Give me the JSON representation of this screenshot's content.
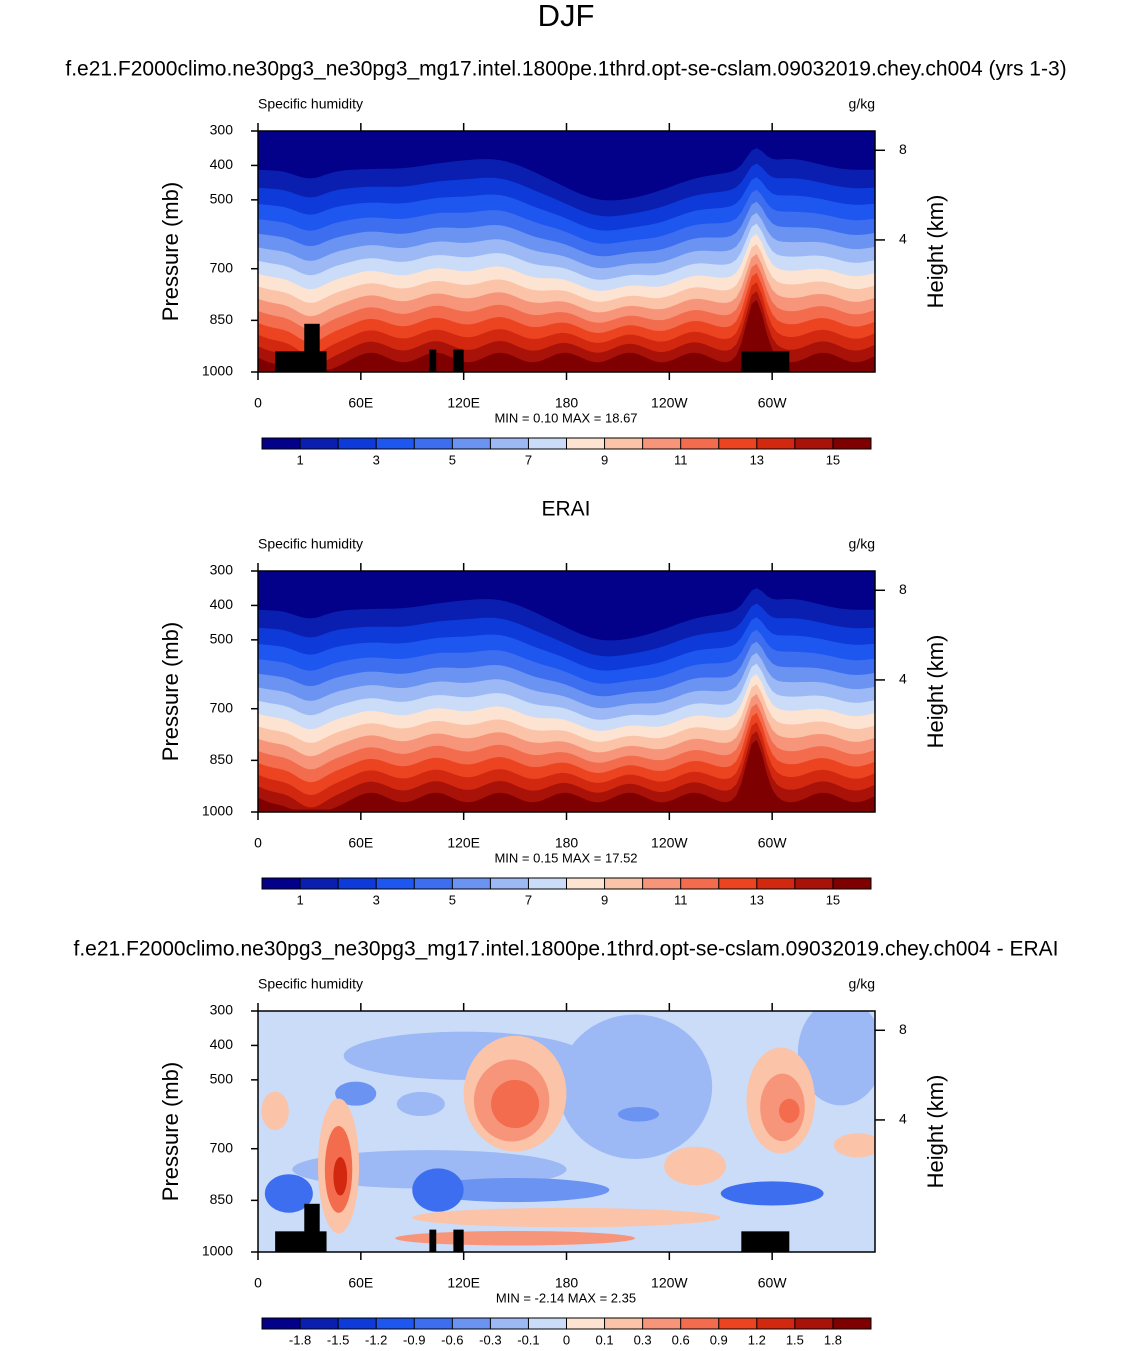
{
  "title": "DJF",
  "chart_data": [
    {
      "type": "contour",
      "title": "f.e21.F2000climo.ne30pg3_ne30pg3_mg17.intel.1800pe.1thrd.opt-se-cslam.09032019.chey.ch004 (yrs 1-3)",
      "left_label": "Specific humidity",
      "right_label": "g/kg",
      "ylabel": "Pressure (mb)",
      "y2label": "Height (km)",
      "xlim": [
        0,
        360
      ],
      "xticks": [
        0,
        {
          "value": 60,
          "label": "60E"
        },
        {
          "value": 120,
          "label": "120E"
        },
        180,
        {
          "value": 240,
          "label": "120W"
        },
        {
          "value": 300,
          "label": "60W"
        }
      ],
      "ylim": [
        1000,
        300
      ],
      "yticks": [
        300,
        400,
        500,
        700,
        850,
        1000
      ],
      "y2ticks": [
        8,
        4
      ],
      "stats": "MIN =   0.10  MAX =  18.67",
      "levels": [
        1,
        2,
        3,
        4,
        5,
        6,
        7,
        8,
        9,
        10,
        11,
        12,
        13,
        14,
        15
      ],
      "colorbar_ticks": [
        1,
        3,
        5,
        7,
        9,
        11,
        13,
        15
      ],
      "colors": [
        "#03008a",
        "#0a1fb0",
        "#0d3ad8",
        "#1e56f0",
        "#3d6ef0",
        "#6a93f2",
        "#9cb8f5",
        "#cadcf8",
        "#fde3d2",
        "#fbc3a8",
        "#f7957a",
        "#f26c4d",
        "#ec4321",
        "#d2280f",
        "#a81208",
        "#7f0000"
      ]
    },
    {
      "type": "contour",
      "title": "ERAI",
      "left_label": "Specific humidity",
      "right_label": "g/kg",
      "ylabel": "Pressure (mb)",
      "y2label": "Height (km)",
      "xlim": [
        0,
        360
      ],
      "xticks": [
        0,
        {
          "value": 60,
          "label": "60E"
        },
        {
          "value": 120,
          "label": "120E"
        },
        180,
        {
          "value": 240,
          "label": "120W"
        },
        {
          "value": 300,
          "label": "60W"
        }
      ],
      "ylim": [
        1000,
        300
      ],
      "yticks": [
        300,
        400,
        500,
        700,
        850,
        1000
      ],
      "y2ticks": [
        8,
        4
      ],
      "stats": "MIN =   0.15  MAX =  17.52",
      "levels": [
        1,
        2,
        3,
        4,
        5,
        6,
        7,
        8,
        9,
        10,
        11,
        12,
        13,
        14,
        15
      ],
      "colorbar_ticks": [
        1,
        3,
        5,
        7,
        9,
        11,
        13,
        15
      ],
      "colors": [
        "#03008a",
        "#0a1fb0",
        "#0d3ad8",
        "#1e56f0",
        "#3d6ef0",
        "#6a93f2",
        "#9cb8f5",
        "#cadcf8",
        "#fde3d2",
        "#fbc3a8",
        "#f7957a",
        "#f26c4d",
        "#ec4321",
        "#d2280f",
        "#a81208",
        "#7f0000"
      ]
    },
    {
      "type": "contour-diff",
      "title": "f.e21.F2000climo.ne30pg3_ne30pg3_mg17.intel.1800pe.1thrd.opt-se-cslam.09032019.chey.ch004 - ERAI",
      "left_label": "Specific humidity",
      "right_label": "g/kg",
      "ylabel": "Pressure (mb)",
      "y2label": "Height (km)",
      "xlim": [
        0,
        360
      ],
      "xticks": [
        0,
        {
          "value": 60,
          "label": "60E"
        },
        {
          "value": 120,
          "label": "120E"
        },
        180,
        {
          "value": 240,
          "label": "120W"
        },
        {
          "value": 300,
          "label": "60W"
        }
      ],
      "ylim": [
        1000,
        300
      ],
      "yticks": [
        300,
        400,
        500,
        700,
        850,
        1000
      ],
      "y2ticks": [
        8,
        4
      ],
      "stats": "MIN =  -2.14  MAX =   2.35",
      "levels": [
        -1.8,
        -1.5,
        -1.2,
        -0.9,
        -0.6,
        -0.3,
        -0.1,
        0,
        0.1,
        0.3,
        0.6,
        0.9,
        1.2,
        1.5,
        1.8
      ],
      "colorbar_ticks": [
        -1.8,
        -1.5,
        -1.2,
        -0.9,
        -0.6,
        -0.3,
        -0.1,
        0,
        0.1,
        0.3,
        0.6,
        0.9,
        1.2,
        1.5,
        1.8
      ],
      "colors": [
        "#03008a",
        "#0a1fb0",
        "#0d3ad8",
        "#1e56f0",
        "#3d6ef0",
        "#6a93f2",
        "#9cb8f5",
        "#cadcf8",
        "#fde3d2",
        "#fbc3a8",
        "#f7957a",
        "#f26c4d",
        "#ec4321",
        "#d2280f",
        "#a81208",
        "#7f0000"
      ]
    }
  ]
}
